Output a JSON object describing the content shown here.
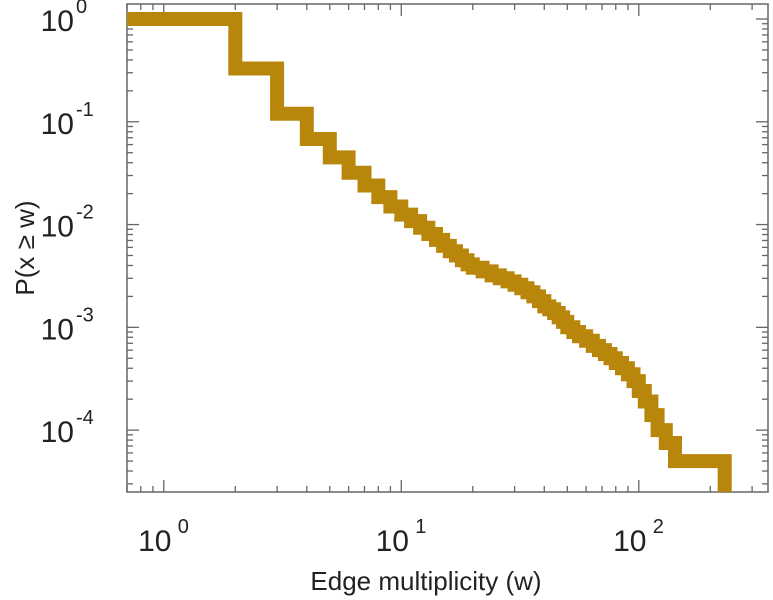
{
  "chart_data": {
    "type": "line",
    "step": true,
    "xscale": "log",
    "yscale": "log",
    "xlabel": "Edge multiplicity (w)",
    "ylabel": "P(x ≥ w)",
    "xlim": [
      0.7,
      350
    ],
    "ylim": [
      2.5e-05,
      1.4
    ],
    "grid": false,
    "x_ticks": [
      {
        "base": "10",
        "exp": "0",
        "value": 1
      },
      {
        "base": "10",
        "exp": "1",
        "value": 10
      },
      {
        "base": "10",
        "exp": "2",
        "value": 100
      }
    ],
    "y_ticks": [
      {
        "base": "10",
        "exp": "0",
        "value": 1
      },
      {
        "base": "10",
        "exp": "-1",
        "value": 0.1
      },
      {
        "base": "10",
        "exp": "-2",
        "value": 0.01
      },
      {
        "base": "10",
        "exp": "-3",
        "value": 0.001
      },
      {
        "base": "10",
        "exp": "-4",
        "value": 0.0001
      }
    ],
    "series": [
      {
        "color": "#b8860b",
        "x": [
          1,
          2,
          3,
          4,
          5,
          6,
          7,
          8,
          9,
          10,
          11,
          12,
          13,
          14,
          15,
          16,
          17,
          18,
          19,
          20,
          22,
          24,
          26,
          28,
          30,
          32,
          34,
          36,
          38,
          40,
          42,
          44,
          46,
          48,
          50,
          53,
          56,
          60,
          64,
          68,
          72,
          76,
          80,
          85,
          90,
          95,
          100,
          106,
          113,
          120,
          130,
          142,
          230
        ],
        "y": [
          1,
          0.33,
          0.12,
          0.068,
          0.045,
          0.032,
          0.024,
          0.0185,
          0.015,
          0.0125,
          0.0108,
          0.0093,
          0.0081,
          0.0071,
          0.0062,
          0.0055,
          0.005,
          0.0045,
          0.0041,
          0.0038,
          0.0035,
          0.0032,
          0.003,
          0.0028,
          0.0026,
          0.0024,
          0.0022,
          0.002,
          0.0018,
          0.0016,
          0.0015,
          0.00138,
          0.00125,
          0.00113,
          0.001,
          0.0009,
          0.00082,
          0.00074,
          0.00066,
          0.0006,
          0.00055,
          0.0005,
          0.00045,
          0.0004,
          0.00035,
          0.0003,
          0.00024,
          0.00019,
          0.00014,
          0.0001,
          7.5e-05,
          5e-05,
          3e-05
        ]
      }
    ]
  }
}
